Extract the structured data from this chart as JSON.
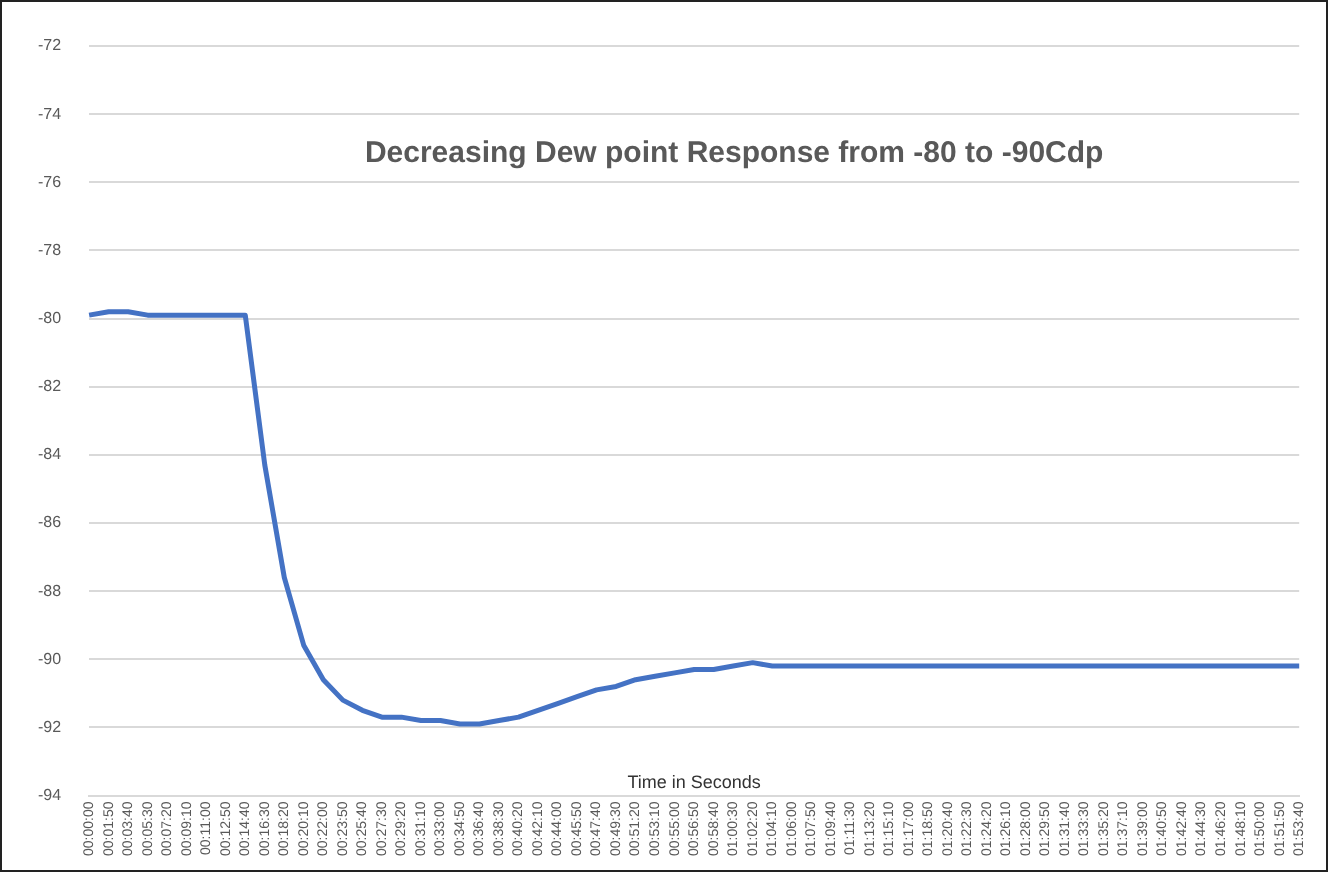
{
  "chart_data": {
    "type": "line",
    "title": "Decreasing Dew point Response from -80 to -90Cdp",
    "xlabel": "Time in Seconds",
    "categories": [
      "00:00:00",
      "00:01:50",
      "00:03:40",
      "00:05:30",
      "00:07:20",
      "00:09:10",
      "00:11:00",
      "00:12:50",
      "00:14:40",
      "00:16:30",
      "00:18:20",
      "00:20:10",
      "00:22:00",
      "00:23:50",
      "00:25:40",
      "00:27:30",
      "00:29:20",
      "00:31:10",
      "00:33:00",
      "00:34:50",
      "00:36:40",
      "00:38:30",
      "00:40:20",
      "00:42:10",
      "00:44:00",
      "00:45:50",
      "00:47:40",
      "00:49:30",
      "00:51:20",
      "00:53:10",
      "00:55:00",
      "00:56:50",
      "00:58:40",
      "01:00:30",
      "01:02:20",
      "01:04:10",
      "01:06:00",
      "01:07:50",
      "01:09:40",
      "01:11:30",
      "01:13:20",
      "01:15:10",
      "01:17:00",
      "01:18:50",
      "01:20:40",
      "01:22:30",
      "01:24:20",
      "01:26:10",
      "01:28:00",
      "01:29:50",
      "01:31:40",
      "01:33:30",
      "01:35:20",
      "01:37:10",
      "01:39:00",
      "01:40:50",
      "01:42:40",
      "01:44:30",
      "01:46:20",
      "01:48:10",
      "01:50:00",
      "01:51:50",
      "01:53:40"
    ],
    "series": [
      {
        "color": "#4472c4",
        "values": [
          -79.9,
          -79.8,
          -79.8,
          -79.9,
          -79.9,
          -79.9,
          -79.9,
          -79.9,
          -79.9,
          -84.3,
          -87.6,
          -89.6,
          -90.6,
          -91.2,
          -91.5,
          -91.7,
          -91.7,
          -91.8,
          -91.8,
          -91.9,
          -91.9,
          -91.8,
          -91.7,
          -91.5,
          -91.3,
          -91.1,
          -90.9,
          -90.8,
          -90.6,
          -90.5,
          -90.4,
          -90.3,
          -90.3,
          -90.2,
          -90.1,
          -90.2,
          -90.2,
          -90.2,
          -90.2,
          -90.2,
          -90.2,
          -90.2,
          -90.2,
          -90.2,
          -90.2,
          -90.2,
          -90.2,
          -90.2,
          -90.2,
          -90.2,
          -90.2,
          -90.2,
          -90.2,
          -90.2,
          -90.2,
          -90.2,
          -90.2,
          -90.2,
          -90.2,
          -90.2,
          -90.2,
          -90.2,
          -90.2
        ]
      }
    ],
    "ylim": [
      -94,
      -72
    ],
    "yticks": [
      -94,
      -92,
      -90,
      -88,
      -86,
      -84,
      -82,
      -80,
      -78,
      -76,
      -74,
      -72
    ],
    "grid": "y",
    "legend": false,
    "marker": "none",
    "line_style": "solid"
  }
}
